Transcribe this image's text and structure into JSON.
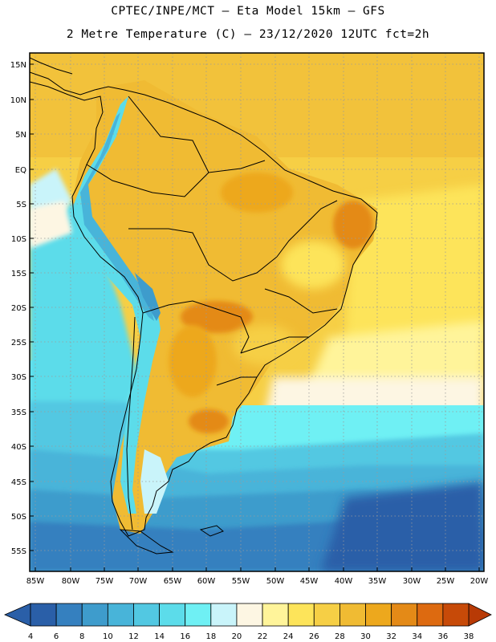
{
  "header": {
    "line1": "CPTEC/INPE/MCT –  Eta Model 15km – GFS",
    "line2": "2 Metre Temperature (C) – 23/12/2020 12UTC fct=2h"
  },
  "axes": {
    "lat_labels": [
      "15N",
      "10N",
      "5N",
      "EQ",
      "5S",
      "10S",
      "15S",
      "20S",
      "25S",
      "30S",
      "35S",
      "40S",
      "45S",
      "50S",
      "55S"
    ],
    "lon_labels": [
      "85W",
      "80W",
      "75W",
      "70W",
      "65W",
      "60W",
      "55W",
      "50W",
      "45W",
      "40W",
      "35W",
      "30W",
      "25W",
      "20W"
    ]
  },
  "colorbar": {
    "labels": [
      "4",
      "6",
      "8",
      "10",
      "12",
      "14",
      "16",
      "18",
      "20",
      "22",
      "24",
      "26",
      "28",
      "30",
      "32",
      "34",
      "36",
      "38"
    ],
    "colors": [
      "#2a5fa8",
      "#3580bf",
      "#3e9ccc",
      "#48b4d9",
      "#52c8e2",
      "#5cdcea",
      "#6ff0f4",
      "#c9f4fa",
      "#fdf6e3",
      "#fff49a",
      "#fde45a",
      "#f6cf45",
      "#f0bb33",
      "#eda81d",
      "#e48a17",
      "#dd6a10",
      "#c74a08"
    ],
    "low_color": "#2a5fa8",
    "high_color": "#b83a06"
  }
}
